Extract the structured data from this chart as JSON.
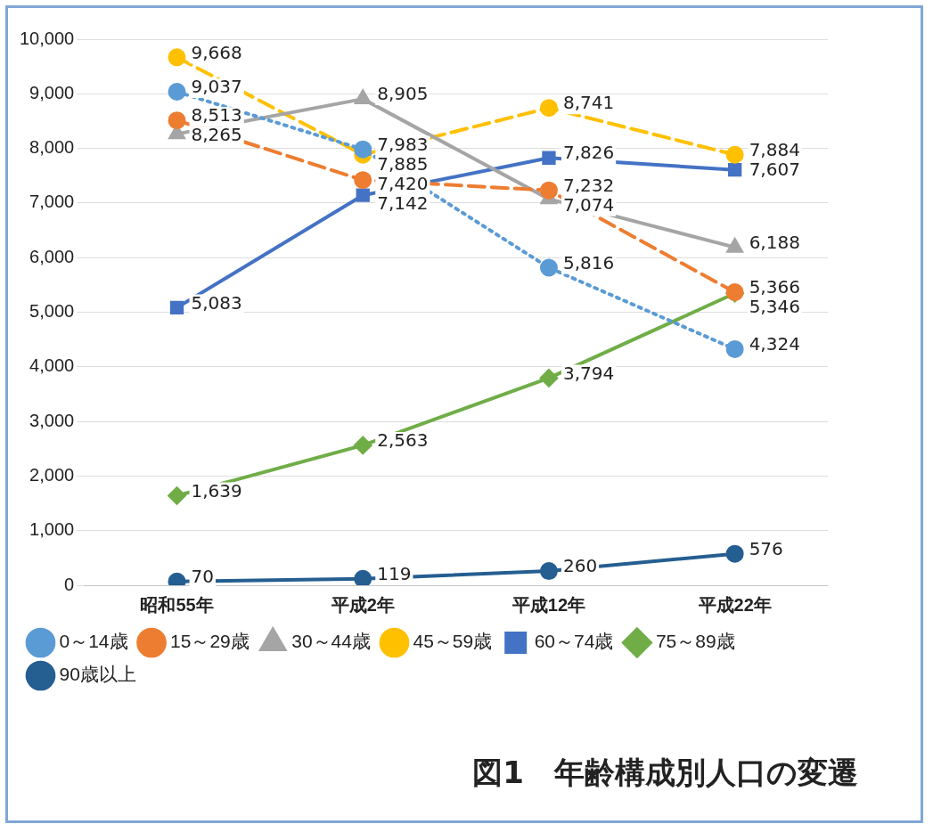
{
  "chart_data": {
    "type": "line",
    "title": "図1　年齢構成別人口の変遷",
    "categories": [
      "昭和55年",
      "平成2年",
      "平成12年",
      "平成22年"
    ],
    "series": [
      {
        "name": "0～14歳",
        "color": "#5b9bd5",
        "marker": "circle",
        "line_style": "dotted",
        "values": [
          9037,
          7983,
          5816,
          4324
        ],
        "value_labels": [
          "9,037",
          "7,983",
          "5,816",
          "4,324"
        ]
      },
      {
        "name": "15～29歳",
        "color": "#ed7d31",
        "marker": "circle",
        "line_style": "dashed",
        "values": [
          8513,
          7420,
          7232,
          5366
        ],
        "value_labels": [
          "8,513",
          "7,420",
          "7,232",
          "5,366"
        ]
      },
      {
        "name": "30～44歳",
        "color": "#a5a5a5",
        "marker": "triangle",
        "line_style": "solid",
        "values": [
          8265,
          8905,
          7074,
          6188
        ],
        "value_labels": [
          "8,265",
          "8,905",
          "7,074",
          "6,188"
        ]
      },
      {
        "name": "45～59歳",
        "color": "#ffc000",
        "marker": "circle",
        "line_style": "dashed",
        "values": [
          9668,
          7885,
          8741,
          7884
        ],
        "value_labels": [
          "9,668",
          "7,885",
          "8,741",
          "7,884"
        ]
      },
      {
        "name": "60～74歳",
        "color": "#4472c4",
        "marker": "square",
        "line_style": "solid",
        "values": [
          5083,
          7142,
          7826,
          7607
        ],
        "value_labels": [
          "5,083",
          "7,142",
          "7,826",
          "7,607"
        ]
      },
      {
        "name": "75～89歳",
        "color": "#70ad47",
        "marker": "diamond",
        "line_style": "solid",
        "values": [
          1639,
          2563,
          3794,
          5346
        ],
        "value_labels": [
          "1,639",
          "2,563",
          "3,794",
          "5,346"
        ]
      },
      {
        "name": "90歳以上",
        "color": "#255e91",
        "marker": "circle",
        "line_style": "solid",
        "values": [
          70,
          119,
          260,
          576
        ],
        "value_labels": [
          "70",
          "119",
          "260",
          "576"
        ]
      }
    ],
    "ylim": [
      0,
      10000
    ],
    "yticks": [
      {
        "value": 0,
        "label": "0"
      },
      {
        "value": 1000,
        "label": "1,000"
      },
      {
        "value": 2000,
        "label": "2,000"
      },
      {
        "value": 3000,
        "label": "3,000"
      },
      {
        "value": 4000,
        "label": "4,000"
      },
      {
        "value": 5000,
        "label": "5,000"
      },
      {
        "value": 6000,
        "label": "6,000"
      },
      {
        "value": 7000,
        "label": "7,000"
      },
      {
        "value": 8000,
        "label": "8,000"
      },
      {
        "value": 9000,
        "label": "9,000"
      },
      {
        "value": 10000,
        "label": "10,000"
      }
    ],
    "grid": "y",
    "legend": "bottom"
  }
}
